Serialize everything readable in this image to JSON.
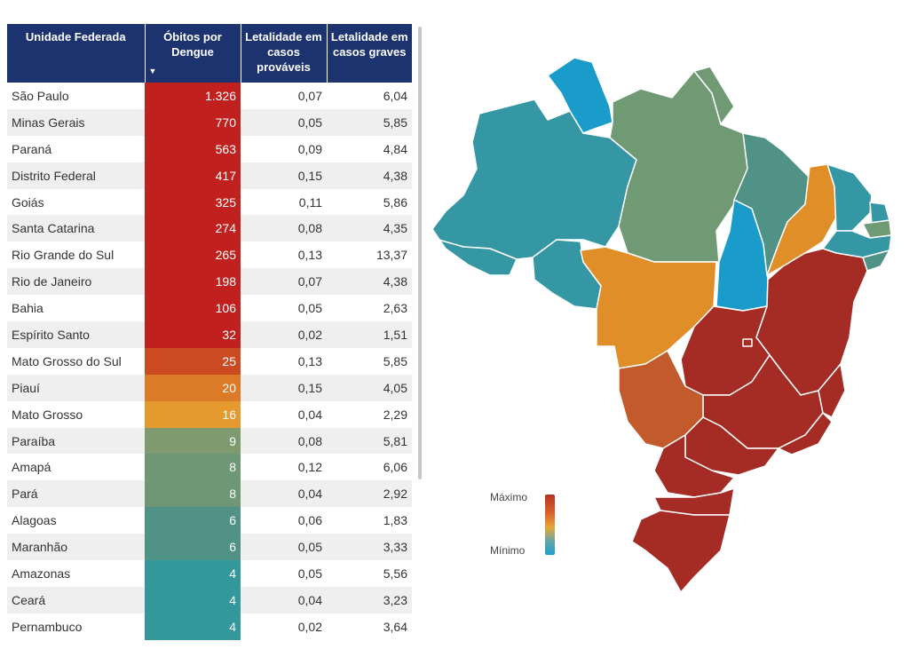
{
  "table": {
    "headers": {
      "state": "Unidade Federada",
      "deaths": "Óbitos por Dengue",
      "lethality_probable": "Letalidade em casos prováveis",
      "lethality_severe": "Letalidade em casos graves"
    },
    "rows": [
      {
        "state": "São Paulo",
        "deaths": "1.326",
        "lethality_probable": "0,07",
        "lethality_severe": "6,04",
        "color": "#c0211f"
      },
      {
        "state": "Minas Gerais",
        "deaths": "770",
        "lethality_probable": "0,05",
        "lethality_severe": "5,85",
        "color": "#c0211f"
      },
      {
        "state": "Paraná",
        "deaths": "563",
        "lethality_probable": "0,09",
        "lethality_severe": "4,84",
        "color": "#c0211f"
      },
      {
        "state": "Distrito Federal",
        "deaths": "417",
        "lethality_probable": "0,15",
        "lethality_severe": "4,38",
        "color": "#c0211f"
      },
      {
        "state": "Goiás",
        "deaths": "325",
        "lethality_probable": "0,11",
        "lethality_severe": "5,86",
        "color": "#c0211f"
      },
      {
        "state": "Santa Catarina",
        "deaths": "274",
        "lethality_probable": "0,08",
        "lethality_severe": "4,35",
        "color": "#c0211f"
      },
      {
        "state": "Rio Grande do Sul",
        "deaths": "265",
        "lethality_probable": "0,13",
        "lethality_severe": "13,37",
        "color": "#c0211f"
      },
      {
        "state": "Rio de Janeiro",
        "deaths": "198",
        "lethality_probable": "0,07",
        "lethality_severe": "4,38",
        "color": "#c0211f"
      },
      {
        "state": "Bahia",
        "deaths": "106",
        "lethality_probable": "0,05",
        "lethality_severe": "2,63",
        "color": "#c0211f"
      },
      {
        "state": "Espírito Santo",
        "deaths": "32",
        "lethality_probable": "0,02",
        "lethality_severe": "1,51",
        "color": "#c0211f"
      },
      {
        "state": "Mato Grosso do Sul",
        "deaths": "25",
        "lethality_probable": "0,13",
        "lethality_severe": "5,85",
        "color": "#cc4a22"
      },
      {
        "state": "Piauí",
        "deaths": "20",
        "lethality_probable": "0,15",
        "lethality_severe": "4,05",
        "color": "#db7a27"
      },
      {
        "state": "Mato Grosso",
        "deaths": "16",
        "lethality_probable": "0,04",
        "lethality_severe": "2,29",
        "color": "#e49a2f"
      },
      {
        "state": "Paraíba",
        "deaths": "9",
        "lethality_probable": "0,08",
        "lethality_severe": "5,81",
        "color": "#7f9a6f"
      },
      {
        "state": "Amapá",
        "deaths": "8",
        "lethality_probable": "0,12",
        "lethality_severe": "6,06",
        "color": "#6e9776"
      },
      {
        "state": "Pará",
        "deaths": "8",
        "lethality_probable": "0,04",
        "lethality_severe": "2,92",
        "color": "#6e9776"
      },
      {
        "state": "Alagoas",
        "deaths": "6",
        "lethality_probable": "0,06",
        "lethality_severe": "1,83",
        "color": "#509386"
      },
      {
        "state": "Maranhão",
        "deaths": "6",
        "lethality_probable": "0,05",
        "lethality_severe": "3,33",
        "color": "#509386"
      },
      {
        "state": "Amazonas",
        "deaths": "4",
        "lethality_probable": "0,05",
        "lethality_severe": "5,56",
        "color": "#34979c"
      },
      {
        "state": "Ceará",
        "deaths": "4",
        "lethality_probable": "0,04",
        "lethality_severe": "3,23",
        "color": "#34979c"
      },
      {
        "state": "Pernambuco",
        "deaths": "4",
        "lethality_probable": "0,02",
        "lethality_severe": "3,64",
        "color": "#34979c"
      }
    ]
  },
  "legend": {
    "max_label": "Máximo",
    "min_label": "Mínimo"
  },
  "map_colors": {
    "red": "#a42c24",
    "orange": "#e08e27",
    "dark_orange": "#c35a2b",
    "green": "#6f9a74",
    "teal": "#3597a4",
    "blue": "#1a9ccb"
  }
}
